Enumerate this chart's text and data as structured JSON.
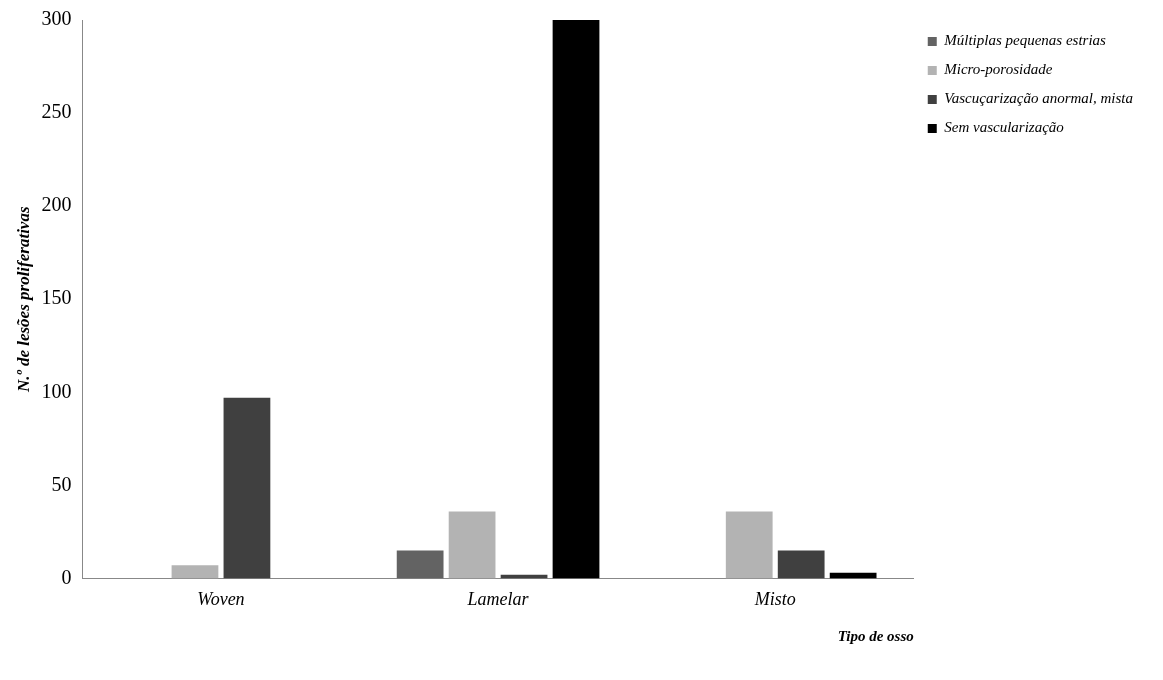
{
  "chart_data": {
    "type": "bar",
    "xlabel": "Tipo de osso",
    "ylabel": "N.º de lesões proliferativas",
    "categories": [
      "Woven",
      "Lamelar",
      "Misto"
    ],
    "series": [
      {
        "name": "Múltiplas pequenas estrias",
        "color": "#636363",
        "values": [
          0,
          15,
          0
        ]
      },
      {
        "name": "Micro-porosidade",
        "color": "#b3b3b3",
        "values": [
          7,
          36,
          36
        ]
      },
      {
        "name": "Vascuçarização anormal, mista",
        "color": "#404040",
        "values": [
          97,
          2,
          15
        ]
      },
      {
        "name": "Sem vascularização",
        "color": "#000000",
        "values": [
          0,
          300,
          3
        ]
      }
    ],
    "ylim": [
      0,
      300
    ],
    "yticks": [
      0,
      50,
      100,
      150,
      200,
      250,
      300
    ],
    "grid": false,
    "legend": "top right"
  }
}
